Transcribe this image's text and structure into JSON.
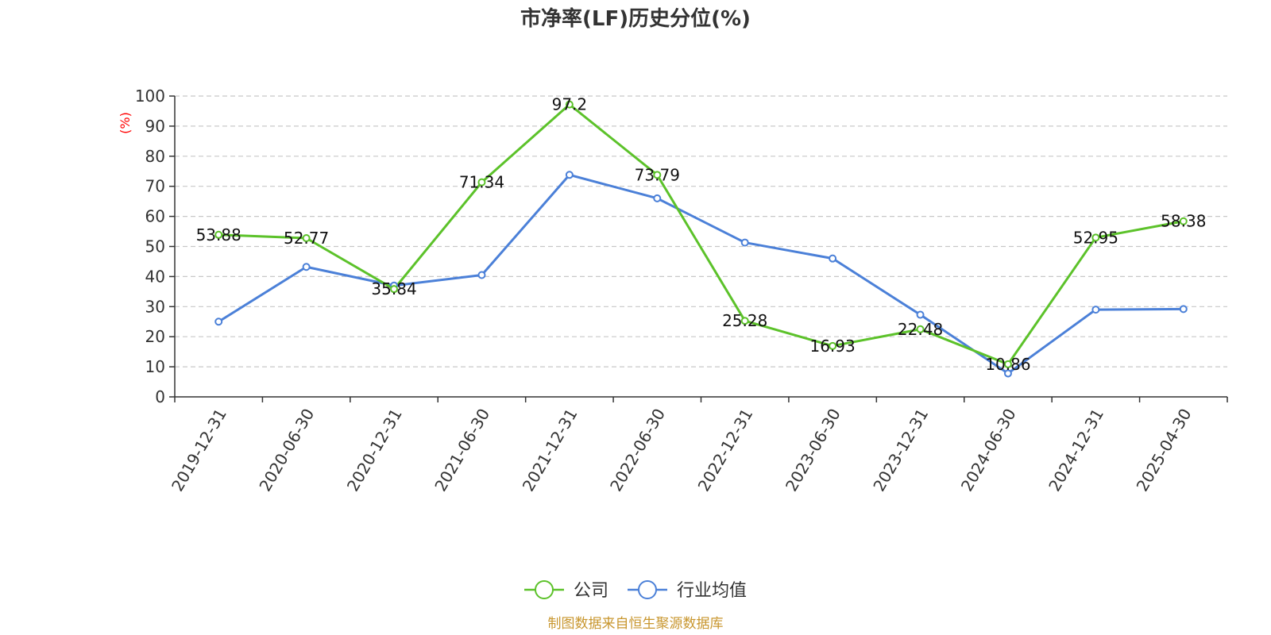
{
  "chart_data": {
    "type": "line",
    "title": "市净率(LF)历史分位(%)",
    "ylabel": "(%)",
    "xlabel": "",
    "ylim": [
      0,
      100
    ],
    "yticks": [
      0,
      10,
      20,
      30,
      40,
      50,
      60,
      70,
      80,
      90,
      100
    ],
    "grid": true,
    "legend_position": "bottom-center",
    "categories": [
      "2019-12-31",
      "2020-06-30",
      "2020-12-31",
      "2021-06-30",
      "2021-12-31",
      "2022-06-30",
      "2022-12-31",
      "2023-06-30",
      "2023-12-31",
      "2024-06-30",
      "2024-12-31",
      "2025-04-30"
    ],
    "series": [
      {
        "name": "公司",
        "color": "#5cc22a",
        "values": [
          53.88,
          52.77,
          35.84,
          71.34,
          97.2,
          73.79,
          25.28,
          16.93,
          22.48,
          10.86,
          52.95,
          58.38
        ],
        "labels": [
          "53.88",
          "52.77",
          "35.84",
          "71.34",
          "97.2",
          "73.79",
          "25.28",
          "16.93",
          "22.48",
          "10.86",
          "52.95",
          "58.38"
        ]
      },
      {
        "name": "行业均值",
        "color": "#4b80d8",
        "values": [
          25.0,
          43.2,
          37.0,
          40.5,
          73.8,
          66.0,
          51.3,
          46.0,
          27.3,
          7.8,
          29.0,
          29.2
        ]
      }
    ],
    "source": "制图数据来自恒生聚源数据库"
  }
}
